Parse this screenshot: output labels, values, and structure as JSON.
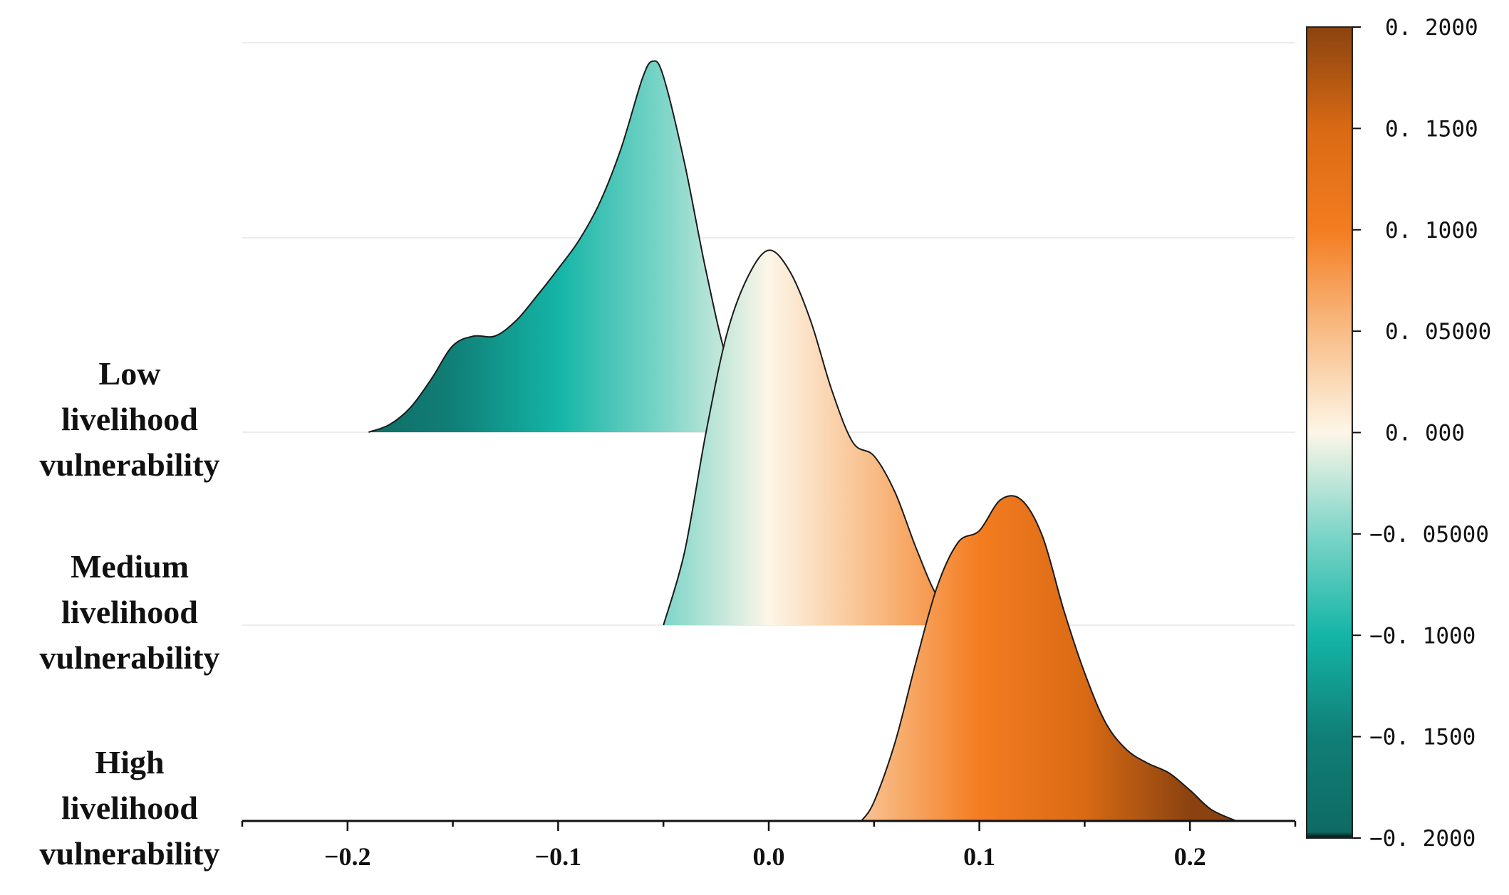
{
  "chart_data": {
    "type": "ridgeline",
    "xlim": [
      -0.25,
      0.25
    ],
    "x_ticks": [
      -0.2,
      -0.1,
      0.0,
      0.1,
      0.2
    ],
    "x_tick_labels": [
      "−0.2",
      "−0.1",
      "0.0",
      "0.1",
      "0.2"
    ],
    "grid": true,
    "categories": [
      {
        "label": "Low livelihood vulnerability"
      },
      {
        "label": "Medium livelihood vulnerability"
      },
      {
        "label": "High livelihood vulnerability"
      }
    ],
    "series": [
      {
        "category_index": 0,
        "x": [
          -0.19,
          -0.18,
          -0.17,
          -0.16,
          -0.15,
          -0.14,
          -0.13,
          -0.12,
          -0.11,
          -0.1,
          -0.09,
          -0.08,
          -0.07,
          -0.06,
          -0.055,
          -0.05,
          -0.04,
          -0.03,
          -0.02,
          -0.01,
          0.0,
          0.01
        ],
        "density": [
          0.0,
          0.04,
          0.13,
          0.28,
          0.45,
          0.5,
          0.5,
          0.58,
          0.71,
          0.85,
          1.0,
          1.2,
          1.48,
          1.84,
          1.93,
          1.85,
          1.4,
          0.85,
          0.38,
          0.12,
          0.03,
          0.0
        ]
      },
      {
        "category_index": 1,
        "x": [
          -0.05,
          -0.04,
          -0.03,
          -0.02,
          -0.01,
          0.0,
          0.01,
          0.02,
          0.03,
          0.04,
          0.05,
          0.06,
          0.07,
          0.08,
          0.09,
          0.1
        ],
        "density": [
          0.0,
          0.38,
          0.99,
          1.51,
          1.81,
          1.95,
          1.84,
          1.58,
          1.22,
          0.95,
          0.88,
          0.69,
          0.4,
          0.15,
          0.04,
          0.0
        ]
      },
      {
        "category_index": 2,
        "x": [
          0.044,
          0.05,
          0.06,
          0.07,
          0.08,
          0.09,
          0.1,
          0.11,
          0.12,
          0.13,
          0.14,
          0.15,
          0.16,
          0.17,
          0.18,
          0.19,
          0.2,
          0.21,
          0.222
        ],
        "density": [
          0.0,
          0.1,
          0.41,
          0.83,
          1.22,
          1.45,
          1.51,
          1.67,
          1.67,
          1.48,
          1.1,
          0.77,
          0.51,
          0.37,
          0.3,
          0.25,
          0.16,
          0.06,
          0.0
        ]
      }
    ],
    "colorbar": {
      "range": [
        -0.2,
        0.2
      ],
      "ticks": [
        0.2,
        0.15,
        0.1,
        0.05,
        0.0,
        -0.05,
        -0.1,
        -0.15,
        -0.2
      ],
      "tick_labels": [
        "0. 2000",
        "0. 1500",
        "0. 1000",
        "0. 05000",
        "0. 000",
        "−0. 05000",
        "−0. 1000",
        "−0. 1500",
        "−0. 2000"
      ],
      "colors": [
        {
          "value": -0.2,
          "color": "#0a0a0a"
        },
        {
          "value": -0.197,
          "color": "#0e6b64"
        },
        {
          "value": -0.15,
          "color": "#107f77"
        },
        {
          "value": -0.1,
          "color": "#14b5a6"
        },
        {
          "value": -0.05,
          "color": "#7dd5c8"
        },
        {
          "value": 0.0,
          "color": "#fdf6e8"
        },
        {
          "value": 0.05,
          "color": "#f8bc86"
        },
        {
          "value": 0.1,
          "color": "#f47c20"
        },
        {
          "value": 0.15,
          "color": "#d96a14"
        },
        {
          "value": 0.2,
          "color": "#8a4310"
        }
      ]
    }
  }
}
